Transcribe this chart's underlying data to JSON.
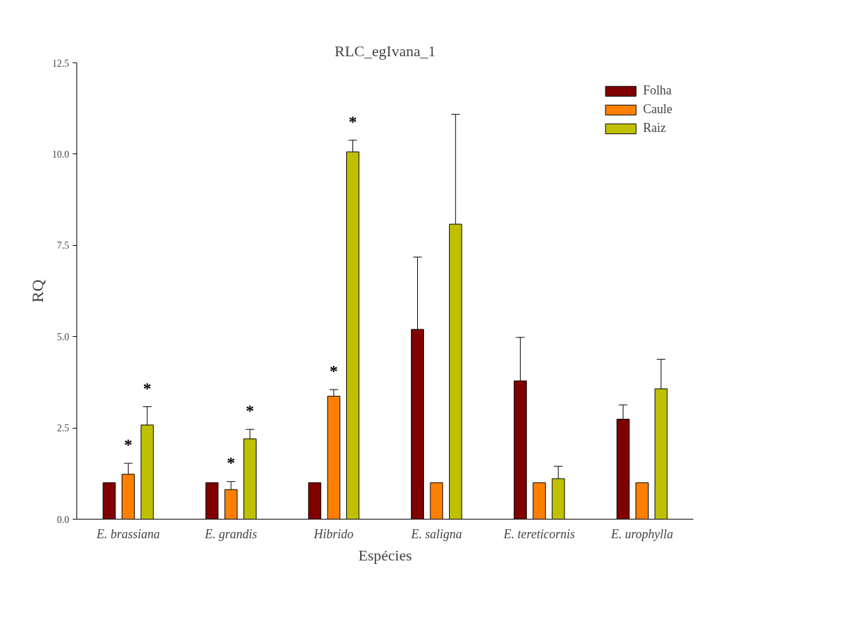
{
  "chart_data": {
    "type": "bar",
    "title": "RLC_egIvana_1",
    "xlabel": "Espécies",
    "ylabel": "RQ",
    "categories": [
      "E. brassiana",
      "E. grandis",
      "Hibrido",
      "E. saligna",
      "E. tereticornis",
      "E. urophylla"
    ],
    "series": [
      {
        "name": "Folha",
        "color": "#800000",
        "values": [
          1.0,
          1.0,
          1.0,
          5.2,
          3.79,
          2.74
        ],
        "errors": [
          null,
          null,
          null,
          [
            5.2,
            7.18
          ],
          [
            3.79,
            4.98
          ],
          [
            2.74,
            3.13
          ]
        ]
      },
      {
        "name": "Caule",
        "color": "#ff8000",
        "values": [
          1.23,
          0.81,
          3.37,
          1.0,
          1.0,
          1.0
        ],
        "errors": [
          [
            1.23,
            1.53
          ],
          [
            0.81,
            1.03
          ],
          [
            3.37,
            3.55
          ],
          null,
          null,
          null
        ],
        "value_labels": [
          "*",
          "*",
          "*",
          null,
          null,
          null
        ]
      },
      {
        "name": "Raiz",
        "color": "#c0c000",
        "values": [
          2.58,
          2.2,
          10.06,
          8.08,
          1.11,
          3.57
        ],
        "errors": [
          [
            2.58,
            3.08
          ],
          [
            2.2,
            2.46
          ],
          [
            10.06,
            10.38
          ],
          [
            8.08,
            11.09
          ],
          [
            1.11,
            1.45
          ],
          [
            3.57,
            4.38
          ]
        ],
        "value_labels": [
          "*",
          "*",
          "*",
          null,
          null,
          null
        ]
      }
    ],
    "ylim": [
      0,
      12.5
    ],
    "yticks": [
      {
        "value": 0,
        "label": "0.0"
      },
      {
        "value": 2.5,
        "label": "2.5"
      },
      {
        "value": 5,
        "label": "5.0"
      },
      {
        "value": 7.5,
        "label": "7.5"
      },
      {
        "value": 10,
        "label": "10.0"
      },
      {
        "value": 12.5,
        "label": "12.5"
      }
    ],
    "legend": "top right",
    "grid": false
  }
}
